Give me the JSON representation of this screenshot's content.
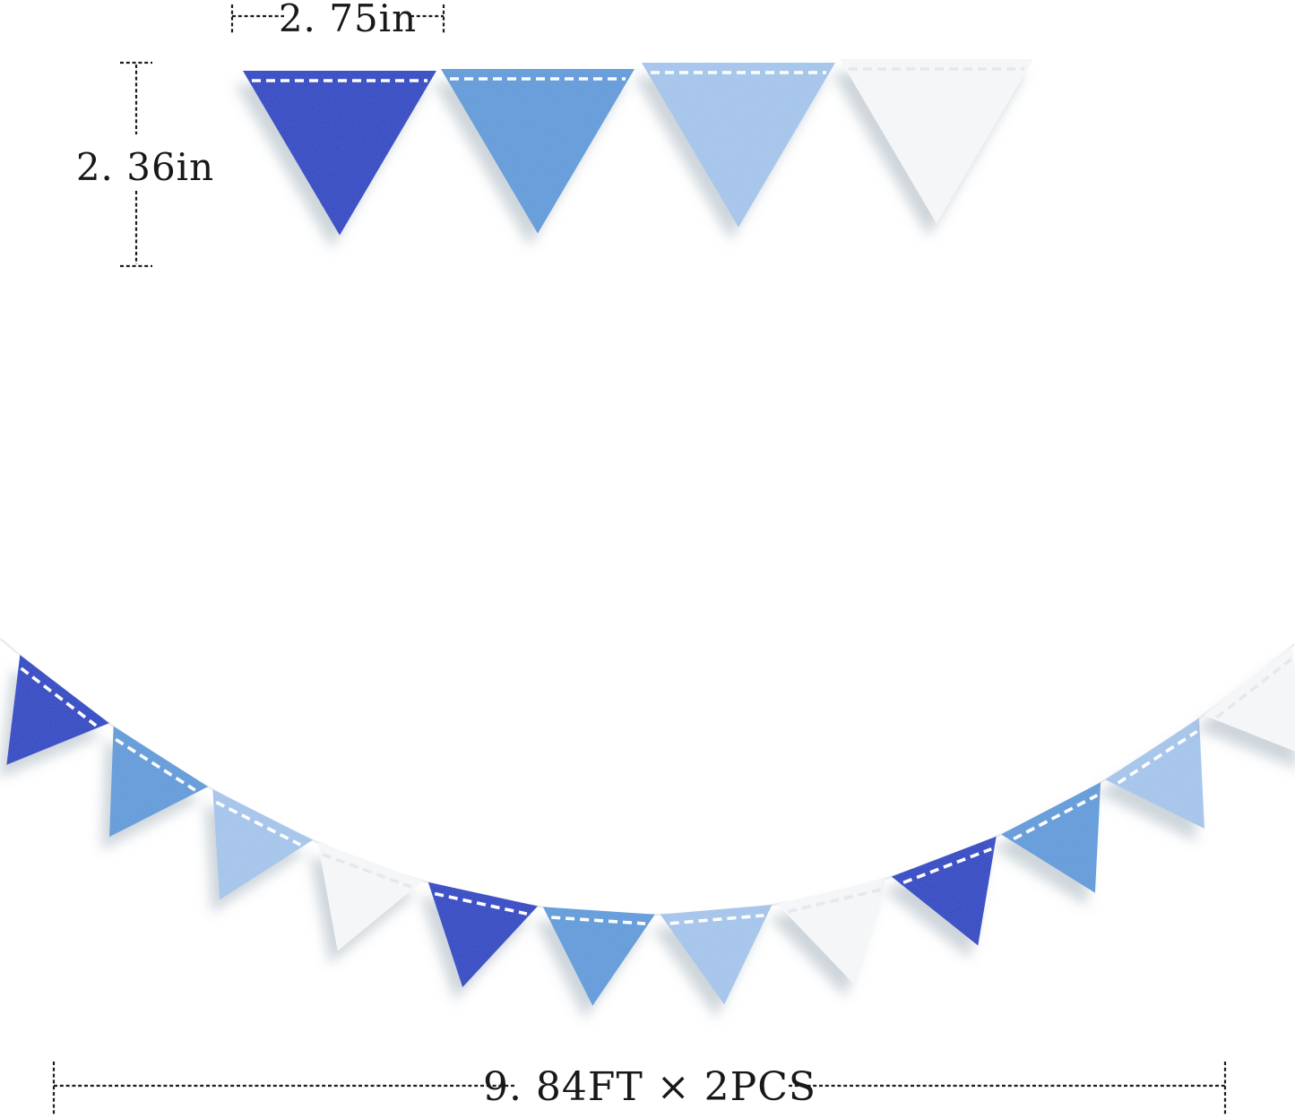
{
  "diagram": {
    "description": "pennant banner size diagram",
    "background": "#ffffff"
  },
  "colors": {
    "royal_blue": "#2342c3",
    "medium_blue": "#5e9ad9",
    "light_blue": "#a4c4ea",
    "white": "#f4f6f8",
    "stitch": "#ffffff",
    "stitch_on_white": "#e3e9ee",
    "string": "#e9edf0",
    "shadow": "#93a3af",
    "dimension_line": "#1c1c1c"
  },
  "dimension_labels": {
    "flag_width": "2. 75in",
    "flag_height": "2. 36in",
    "total_length": "9. 84FT × 2PCS"
  },
  "top_banner": {
    "flag_colors": [
      "royal_blue",
      "medium_blue",
      "light_blue",
      "white"
    ]
  },
  "bottom_banner": {
    "flag_colors": [
      "royal_blue",
      "medium_blue",
      "light_blue",
      "white",
      "royal_blue",
      "medium_blue",
      "light_blue",
      "white",
      "royal_blue",
      "medium_blue",
      "light_blue",
      "white"
    ]
  }
}
